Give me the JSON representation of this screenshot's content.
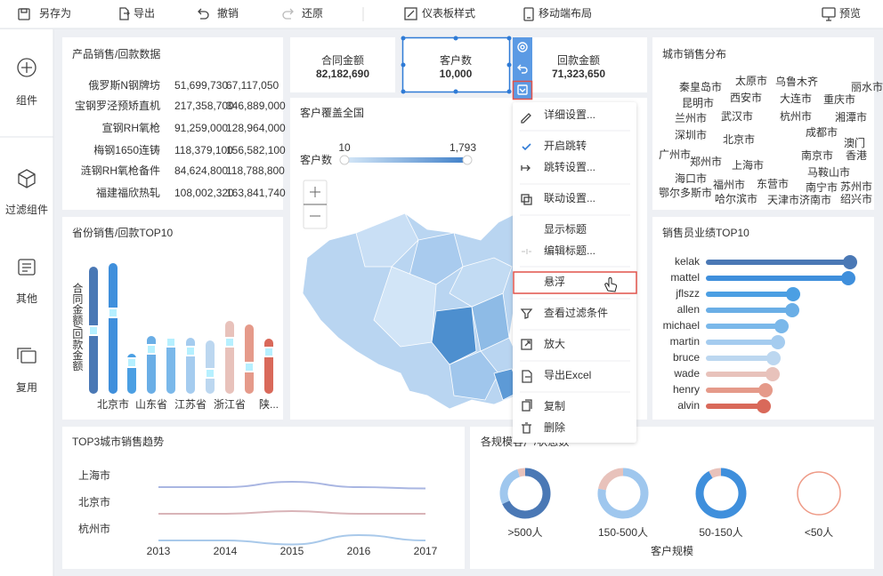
{
  "toolbar": {
    "items": [
      "另存为",
      "导出",
      "撤销",
      "还原",
      "仪表板样式",
      "移动端布局",
      "预览"
    ]
  },
  "sidebar": {
    "items": [
      "组件",
      "过滤组件",
      "其他",
      "复用"
    ]
  },
  "product_table": {
    "title": "产品销售/回款数据",
    "rows": [
      [
        "俄罗斯N钢牌坊",
        "51,699,730",
        "67,117,050"
      ],
      [
        "宝钢罗泾预矫直机",
        "217,358,700",
        "346,889,000"
      ],
      [
        "宣钢RH氧枪",
        "91,259,000",
        "128,964,000"
      ],
      [
        "梅钢1650连铸",
        "118,379,100",
        "156,582,100"
      ],
      [
        "涟钢RH氧枪备件",
        "84,624,800",
        "118,788,800"
      ],
      [
        "福建福欣热轧",
        "108,002,320",
        "163,841,740"
      ]
    ],
    "row_colors": [
      "#2f7bd6",
      "#e0524a",
      "#2f7bd6",
      "#2f7bd6",
      "#2f7bd6",
      "#2f7bd6"
    ]
  },
  "kpis": [
    {
      "label": "合同金额",
      "value": "82,182,690",
      "color": "#e0524a"
    },
    {
      "label": "客户数",
      "value": "10,000",
      "color": "#ee8a70"
    },
    {
      "label": "回款金额",
      "value": "71,323,650",
      "color": "#4b9fe3"
    }
  ],
  "map": {
    "title": "客户覆盖全国",
    "legend_label": "客户数",
    "legend_min": "10",
    "legend_max": "1,793"
  },
  "word_cloud": {
    "title": "城市销售分布",
    "words": [
      "秦皇岛市",
      "太原市",
      "乌鲁木齐",
      "昆明市",
      "西安市",
      "大连市",
      "重庆市",
      "兰州市",
      "武汉市",
      "杭州市",
      "湘潭市",
      "深圳市",
      "北京市",
      "成都市",
      "广州市",
      "郑州市",
      "上海市",
      "南京市",
      "海口市",
      "福州市",
      "东营市",
      "马鞍山市",
      "鄂尔多斯市",
      "哈尔滨市",
      "南宁市",
      "苏州市",
      "天津市济南市",
      "绍兴市",
      "丽水市",
      "澳门",
      "香港"
    ]
  },
  "province_chart": {
    "type": "bar",
    "title": "省份销售/回款TOP10",
    "y_label": "合同金额/回款金额",
    "categories": [
      null,
      "北京市",
      null,
      "山东省",
      null,
      "江苏省",
      null,
      "浙江省",
      null,
      "陕..."
    ],
    "values": [
      143,
      147,
      45,
      65,
      63,
      63,
      60,
      82,
      78,
      62
    ],
    "markers": [
      71,
      91,
      35,
      50,
      58,
      48,
      23,
      58,
      30,
      47
    ],
    "colors": [
      "#4a78b5",
      "#3f8fdc",
      "#4b9fe3",
      "#6aaee6",
      "#7ab8ea",
      "#a5ccef",
      "#bcd7f0",
      "#e8c2bb",
      "#e59a8a",
      "#d9695a"
    ]
  },
  "salesperson_chart": {
    "type": "bar",
    "title": "销售员业绩TOP10",
    "categories": [
      "kelak",
      "mattel",
      "jflszz",
      "allen",
      "michael",
      "martin",
      "bruce",
      "wade",
      "henry",
      "alvin"
    ],
    "values": [
      162,
      160,
      98,
      97,
      85,
      81,
      76,
      75,
      67,
      65
    ],
    "colors": [
      "#4a78b5",
      "#3f8fdc",
      "#4b9fe3",
      "#6aaee6",
      "#7ab8ea",
      "#a5ccef",
      "#bcd7f0",
      "#e8c2bb",
      "#e59a8a",
      "#d9695a"
    ]
  },
  "trend_chart": {
    "type": "line",
    "title": "TOP3城市销售趋势",
    "categories": [
      "2013",
      "2014",
      "2015",
      "2016",
      "2017"
    ],
    "series": [
      {
        "name": "上海市",
        "color": "#a9b6e2",
        "values": [
          50,
          50,
          54,
          50,
          49
        ]
      },
      {
        "name": "北京市",
        "color": "#d9b4b8",
        "values": [
          50,
          50,
          52,
          50,
          50
        ]
      },
      {
        "name": "杭州市",
        "color": "#a9c9ea",
        "values": [
          50,
          50,
          47,
          54,
          50
        ]
      }
    ]
  },
  "donut_chart": {
    "type": "pie",
    "title": "各规模客户/状态数",
    "x_label": "客户规模",
    "groups": [
      {
        "name": ">500人",
        "values": [
          68,
          27,
          5
        ],
        "colors": [
          "#4a78b5",
          "#9fc7ee",
          "#e8c2bb"
        ]
      },
      {
        "name": "150-500人",
        "values": [
          78,
          22
        ],
        "colors": [
          "#9fc7ee",
          "#e8c2bb"
        ]
      },
      {
        "name": "50-150人",
        "values": [
          92,
          8
        ],
        "colors": [
          "#3f8fdc",
          "#e8c2bb"
        ]
      },
      {
        "name": "<50人",
        "values": [
          100
        ],
        "colors": [
          "#ee9a86"
        ]
      }
    ]
  },
  "context_menu": {
    "items": [
      "详细设置...",
      "开启跳转",
      "跳转设置...",
      "联动设置...",
      "显示标题",
      "编辑标题...",
      "悬浮",
      "查看过滤条件",
      "放大",
      "导出Excel",
      "复制",
      "删除"
    ]
  }
}
